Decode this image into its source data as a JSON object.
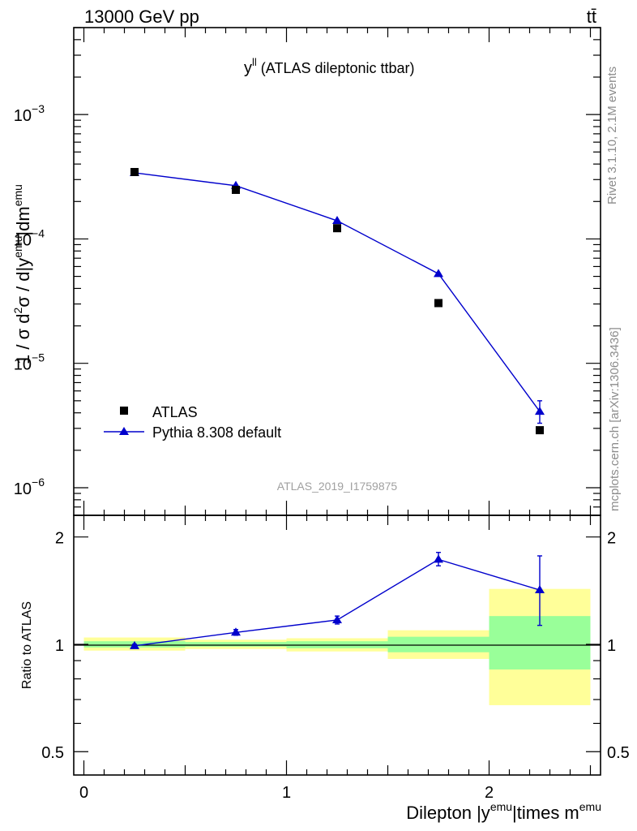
{
  "header": {
    "left": "13000 GeV pp",
    "right": "tt̄"
  },
  "side_text": {
    "rivet": "Rivet 3.1.10,  2.1M events",
    "mcplots": "mcplots.cern.ch [arXiv:1306.3436]"
  },
  "chart_data": [
    {
      "type": "scatter",
      "title": "y^ll (ATLAS dileptonic ttbar)",
      "title_main": "y",
      "title_sup": "ll",
      "title_rest": " (ATLAS dileptonic ttbar)",
      "watermark": "ATLAS_2019_I1759875",
      "ylabel": "1 / σ  d²σ / d|y^emu|dm^emu",
      "yscale": "log",
      "ylim": [
        6e-07,
        0.005
      ],
      "xlim": [
        -0.05,
        2.55
      ],
      "yticks": [
        {
          "value": 1e-06,
          "base": "10",
          "exp": "−6"
        },
        {
          "value": 1e-05,
          "base": "10",
          "exp": "−5"
        },
        {
          "value": 0.0001,
          "base": "10",
          "exp": "−4"
        },
        {
          "value": 0.001,
          "base": "10",
          "exp": "−3"
        }
      ],
      "legend": {
        "position": "bottom-left",
        "entries": [
          "ATLAS",
          "Pythia 8.308 default"
        ]
      },
      "series": [
        {
          "name": "ATLAS",
          "marker": "square",
          "color": "#000000",
          "x": [
            0.25,
            0.75,
            1.25,
            1.75,
            2.25
          ],
          "y": [
            0.000345,
            0.000248,
            0.000122,
            3.05e-05,
            2.9e-06
          ]
        },
        {
          "name": "Pythia 8.308 default",
          "marker": "triangle",
          "color": "#0000cc",
          "x": [
            0.25,
            0.75,
            1.25,
            1.75,
            2.25
          ],
          "y": [
            0.00034,
            0.000268,
            0.00014,
            5.25e-05,
            4.1e-06
          ],
          "yerr_low": [
            0.0,
            0.0,
            0.0,
            0.0,
            8e-07
          ],
          "yerr_high": [
            0.0,
            0.0,
            0.0,
            0.0,
            9e-07
          ]
        }
      ]
    },
    {
      "type": "scatter",
      "ylabel": "Ratio to ATLAS",
      "xlabel": "Dilepton |y^emu|times m^emu",
      "xlabel_parts": [
        "Dilepton |y",
        "emu",
        "|times m",
        "emu"
      ],
      "yscale": "log",
      "ylim": [
        0.43,
        2.3
      ],
      "xlim": [
        -0.05,
        2.55
      ],
      "xticks": [
        {
          "value": 0,
          "label": "0"
        },
        {
          "value": 1,
          "label": "1"
        },
        {
          "value": 2,
          "label": "2"
        }
      ],
      "yticks": [
        {
          "value": 0.5,
          "label": "0.5"
        },
        {
          "value": 1,
          "label": "1"
        },
        {
          "value": 2,
          "label": "2"
        }
      ],
      "bands": {
        "x_edges": [
          0,
          0.5,
          1,
          1.5,
          2,
          2.5
        ],
        "outer_low": [
          0.96,
          0.97,
          0.955,
          0.91,
          0.675
        ],
        "outer_high": [
          1.045,
          1.03,
          1.04,
          1.095,
          1.43
        ],
        "inner_low": [
          0.98,
          0.985,
          0.975,
          0.95,
          0.85
        ],
        "inner_high": [
          1.02,
          1.015,
          1.02,
          1.05,
          1.2
        ],
        "outer_color": "#ffff99",
        "inner_color": "#99ff99"
      },
      "series": [
        {
          "name": "Pythia 8.308 default",
          "color": "#0000cc",
          "x": [
            0.25,
            0.75,
            1.25,
            1.75,
            2.25
          ],
          "y": [
            0.99,
            1.08,
            1.17,
            1.73,
            1.42
          ],
          "yerr_low": [
            0.01,
            0.02,
            0.03,
            0.07,
            0.29
          ],
          "yerr_high": [
            0.01,
            0.02,
            0.03,
            0.08,
            0.35
          ]
        }
      ]
    }
  ]
}
